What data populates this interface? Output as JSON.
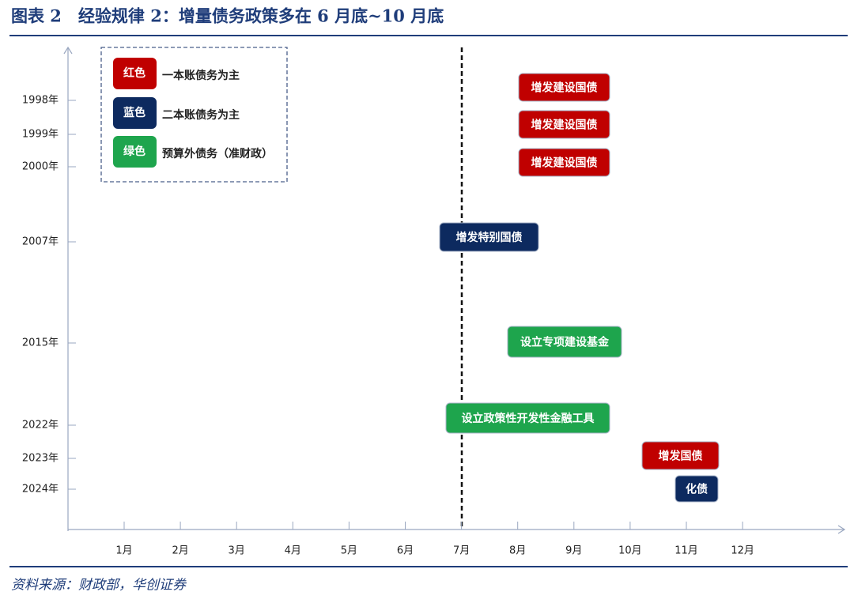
{
  "header": {
    "title": "图表 2　经验规律 2：增量债务政策多在 6 月底~10 月底"
  },
  "legend": [
    {
      "swatch": "红色",
      "label": "一本账债务为主",
      "color": "#c00000"
    },
    {
      "swatch": "蓝色",
      "label": "二本账债务为主",
      "color": "#0d2a5f"
    },
    {
      "swatch": "绿色",
      "label": "预算外债务（准财政）",
      "color": "#1ea54d"
    }
  ],
  "y_labels": [
    "1998年",
    "1999年",
    "2000年",
    "2007年",
    "2015年",
    "2022年",
    "2023年",
    "2024年"
  ],
  "x_labels": [
    "1月",
    "2月",
    "3月",
    "4月",
    "5月",
    "6月",
    "7月",
    "8月",
    "9月",
    "10月",
    "11月",
    "12月"
  ],
  "events": [
    {
      "label": "增发建设国债",
      "color": "#c00000"
    },
    {
      "label": "增发建设国债",
      "color": "#c00000"
    },
    {
      "label": "增发建设国债",
      "color": "#c00000"
    },
    {
      "label": "增发特别国债",
      "color": "#0d2a5f"
    },
    {
      "label": "设立专项建设基金",
      "color": "#1ea54d"
    },
    {
      "label": "设立政策性开发性金融工具",
      "color": "#1ea54d"
    },
    {
      "label": "增发国债",
      "color": "#c00000"
    },
    {
      "label": "化债",
      "color": "#0d2a5f"
    }
  ],
  "source": "资料来源：财政部，华创证券"
}
